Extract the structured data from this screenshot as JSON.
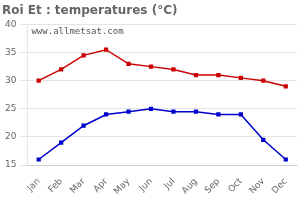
{
  "chart_data": {
    "type": "line",
    "title": "Roi Et : temperatures (°C)",
    "annotation": "www.allmetsat.com",
    "categories": [
      "Jan",
      "Feb",
      "Mar",
      "Apr",
      "May",
      "Jun",
      "Jul",
      "Aug",
      "Sep",
      "Oct",
      "Nov",
      "Dec"
    ],
    "series": [
      {
        "color": "#cc0000",
        "marker": "square",
        "values": [
          30.0,
          32.0,
          34.5,
          35.5,
          33.0,
          32.5,
          32.0,
          31.0,
          31.0,
          30.5,
          30.0,
          29.0
        ]
      },
      {
        "color": "#0000cc",
        "marker": "square",
        "values": [
          16.0,
          19.0,
          22.0,
          24.0,
          24.5,
          25.0,
          24.5,
          24.5,
          24.0,
          24.0,
          19.5,
          16.0
        ]
      }
    ],
    "ylim": [
      15,
      40
    ],
    "yticks": [
      15,
      20,
      25,
      30,
      35,
      40
    ],
    "grid": true
  }
}
